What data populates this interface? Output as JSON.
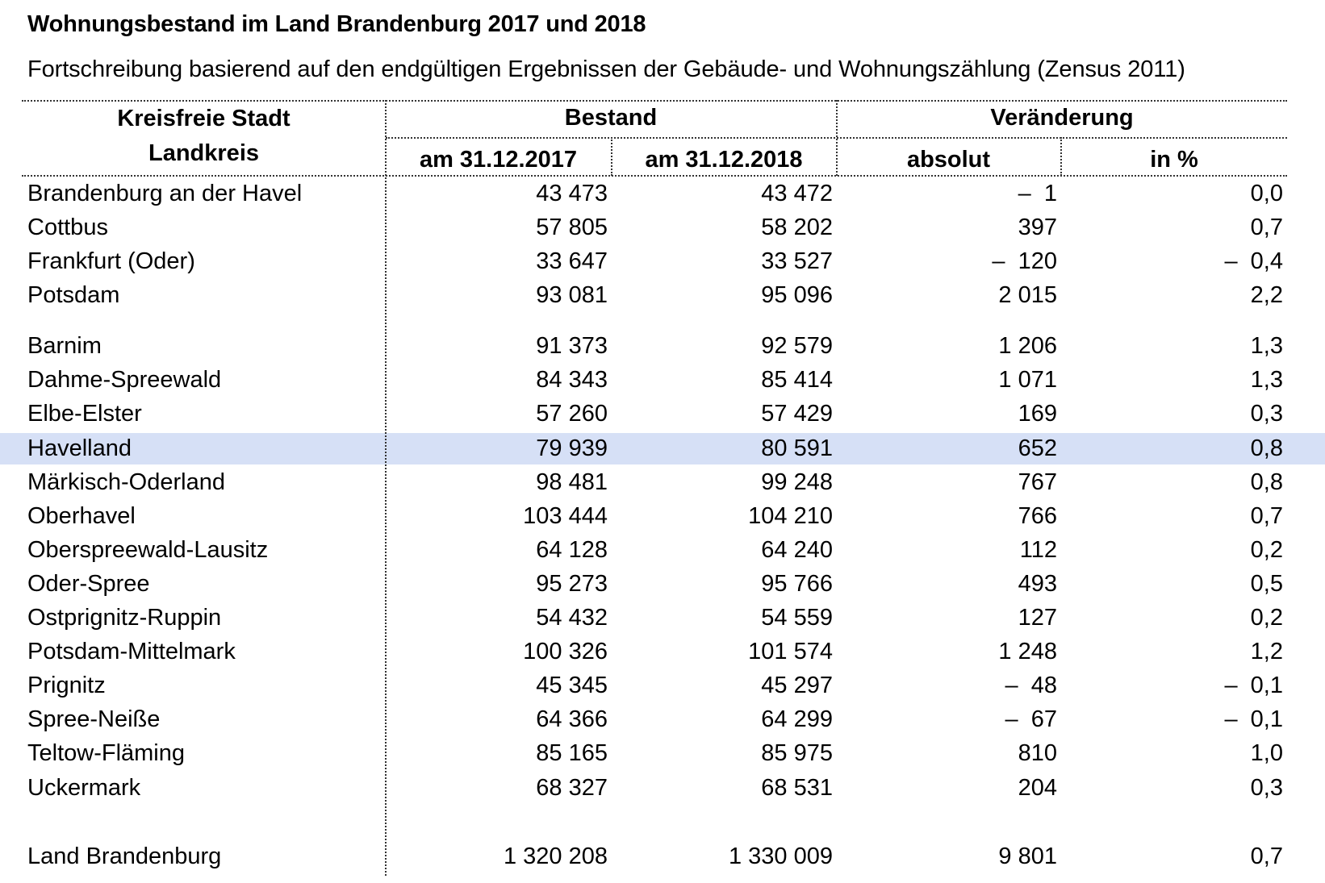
{
  "title": "Wohnungsbestand im Land Brandenburg 2017 und 2018",
  "subtitle": "Fortschreibung basierend auf den endgültigen Ergebnissen der Gebäude- und Wohnungszählung (Zensus 2011)",
  "header": {
    "col_region_line1": "Kreisfreie Stadt",
    "col_region_line2": "Landkreis",
    "group_bestand": "Bestand",
    "group_veraenderung": "Veränderung",
    "col_2017": "am 31.12.2017",
    "col_2018": "am 31.12.2018",
    "col_absolut": "absolut",
    "col_prozent": "in %"
  },
  "highlight_color": "#d6e0f6",
  "rows": [
    {
      "name": "Brandenburg an der Havel",
      "v2017": "43 473",
      "v2018": "43 472",
      "abs": "–  1",
      "pct": "0,0"
    },
    {
      "name": "Cottbus",
      "v2017": "57 805",
      "v2018": "58 202",
      "abs": "397",
      "pct": "0,7"
    },
    {
      "name": "Frankfurt (Oder)",
      "v2017": "33 647",
      "v2018": "33 527",
      "abs": "–  120",
      "pct": "–  0,4"
    },
    {
      "name": "Potsdam",
      "v2017": "93 081",
      "v2018": "95 096",
      "abs": "2 015",
      "pct": "2,2"
    },
    {
      "name": "Barnim",
      "v2017": "91 373",
      "v2018": "92 579",
      "abs": "1 206",
      "pct": "1,3"
    },
    {
      "name": "Dahme-Spreewald",
      "v2017": "84 343",
      "v2018": "85 414",
      "abs": "1 071",
      "pct": "1,3"
    },
    {
      "name": "Elbe-Elster",
      "v2017": "57 260",
      "v2018": "57 429",
      "abs": "169",
      "pct": "0,3"
    },
    {
      "name": "Havelland",
      "v2017": "79 939",
      "v2018": "80 591",
      "abs": "652",
      "pct": "0,8",
      "highlighted": true
    },
    {
      "name": "Märkisch-Oderland",
      "v2017": "98 481",
      "v2018": "99 248",
      "abs": "767",
      "pct": "0,8"
    },
    {
      "name": "Oberhavel",
      "v2017": "103 444",
      "v2018": "104 210",
      "abs": "766",
      "pct": "0,7"
    },
    {
      "name": "Oberspreewald-Lausitz",
      "v2017": "64 128",
      "v2018": "64 240",
      "abs": "112",
      "pct": "0,2"
    },
    {
      "name": "Oder-Spree",
      "v2017": "95 273",
      "v2018": "95 766",
      "abs": "493",
      "pct": "0,5"
    },
    {
      "name": "Ostprignitz-Ruppin",
      "v2017": "54 432",
      "v2018": "54 559",
      "abs": "127",
      "pct": "0,2"
    },
    {
      "name": "Potsdam-Mittelmark",
      "v2017": "100 326",
      "v2018": "101 574",
      "abs": "1 248",
      "pct": "1,2"
    },
    {
      "name": "Prignitz",
      "v2017": "45 345",
      "v2018": "45 297",
      "abs": "–  48",
      "pct": "–  0,1"
    },
    {
      "name": "Spree-Neiße",
      "v2017": "64 366",
      "v2018": "64 299",
      "abs": "–  67",
      "pct": "–  0,1"
    },
    {
      "name": "Teltow-Fläming",
      "v2017": "85 165",
      "v2018": "85 975",
      "abs": "810",
      "pct": "1,0"
    },
    {
      "name": "Uckermark",
      "v2017": "68 327",
      "v2018": "68 531",
      "abs": "204",
      "pct": "0,3"
    },
    {
      "name": "Land Brandenburg",
      "v2017": "1 320 208",
      "v2018": "1 330 009",
      "abs": "9 801",
      "pct": "0,7"
    }
  ]
}
